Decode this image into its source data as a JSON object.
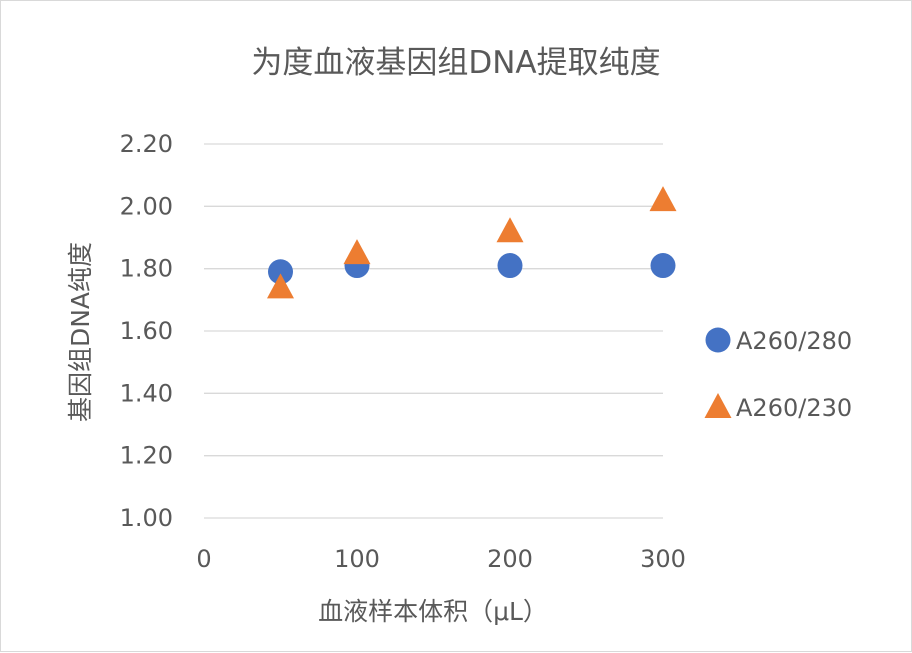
{
  "chart_data": {
    "type": "scatter",
    "title": "为度血液基因组DNA提取纯度",
    "xlabel": "血液样本体积（μL）",
    "ylabel": "基因组DNA纯度",
    "xlim": [
      0,
      300
    ],
    "ylim": [
      1.0,
      2.2
    ],
    "x_ticks": [
      "0",
      "100",
      "200",
      "300"
    ],
    "y_ticks": [
      "1.00",
      "1.20",
      "1.40",
      "1.60",
      "1.80",
      "2.00",
      "2.20"
    ],
    "grid": "horizontal",
    "legend_position": "right",
    "series": [
      {
        "name": "A260/280",
        "marker": "circle",
        "color": "#4472c4",
        "points": [
          [
            50,
            1.79
          ],
          [
            100,
            1.81
          ],
          [
            200,
            1.81
          ],
          [
            300,
            1.81
          ]
        ]
      },
      {
        "name": "A260/230",
        "marker": "triangle",
        "color": "#ed7d31",
        "points": [
          [
            50,
            1.74
          ],
          [
            100,
            1.85
          ],
          [
            200,
            1.92
          ],
          [
            300,
            2.02
          ]
        ]
      }
    ]
  }
}
